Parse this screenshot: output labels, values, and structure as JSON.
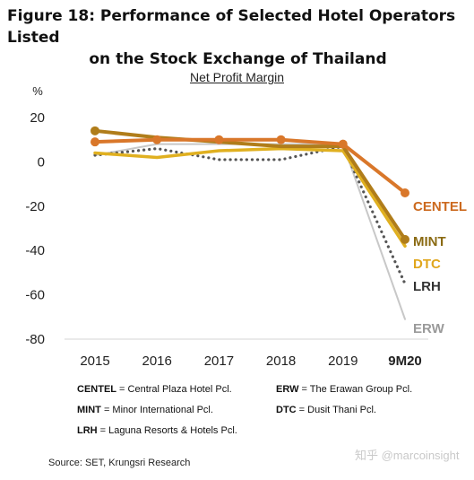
{
  "figure": {
    "title_line1": "Figure 18: Performance of Selected Hotel Operators Listed",
    "title_line2": "on the Stock Exchange of Thailand",
    "source": "Source: SET, Krungsri Research",
    "watermark": "知乎 @marcoinsight"
  },
  "legend_notes": [
    {
      "code": "CENTEL",
      "text": " = Central Plaza Hotel Pcl."
    },
    {
      "code": "ERW",
      "text": " = The Erawan Group Pcl."
    },
    {
      "code": "MINT",
      "text": " = Minor International Pcl."
    },
    {
      "code": "DTC",
      "text": " = Dusit Thani Pcl."
    },
    {
      "code": "LRH",
      "text": " = Laguna Resorts & Hotels Pcl."
    }
  ],
  "chart_data": {
    "type": "line",
    "title": "Net Profit Margin",
    "ylabel": "%",
    "categories": [
      "2015",
      "2016",
      "2017",
      "2018",
      "2019",
      "9M20"
    ],
    "ylim": [
      -80,
      20
    ],
    "yticks": [
      20,
      0,
      -20,
      -40,
      -60,
      -80
    ],
    "grid": false,
    "series": [
      {
        "name": "CENTEL",
        "values": [
          9,
          10,
          10,
          10,
          8,
          -14
        ],
        "color": "#d9772a",
        "style": "solid-markers"
      },
      {
        "name": "MINT",
        "values": [
          14,
          11,
          9,
          7,
          7,
          -35
        ],
        "color": "#b07d1a",
        "style": "solid-markers"
      },
      {
        "name": "DTC",
        "values": [
          4,
          2,
          5,
          6,
          5,
          -38
        ],
        "color": "#e0b020",
        "style": "solid"
      },
      {
        "name": "LRH",
        "values": [
          3,
          6,
          1,
          1,
          7,
          -55
        ],
        "color": "#555555",
        "style": "dotted"
      },
      {
        "name": "ERW",
        "values": [
          3,
          8,
          8,
          8,
          8,
          -71
        ],
        "color": "#c8c8c8",
        "style": "solid"
      }
    ]
  }
}
